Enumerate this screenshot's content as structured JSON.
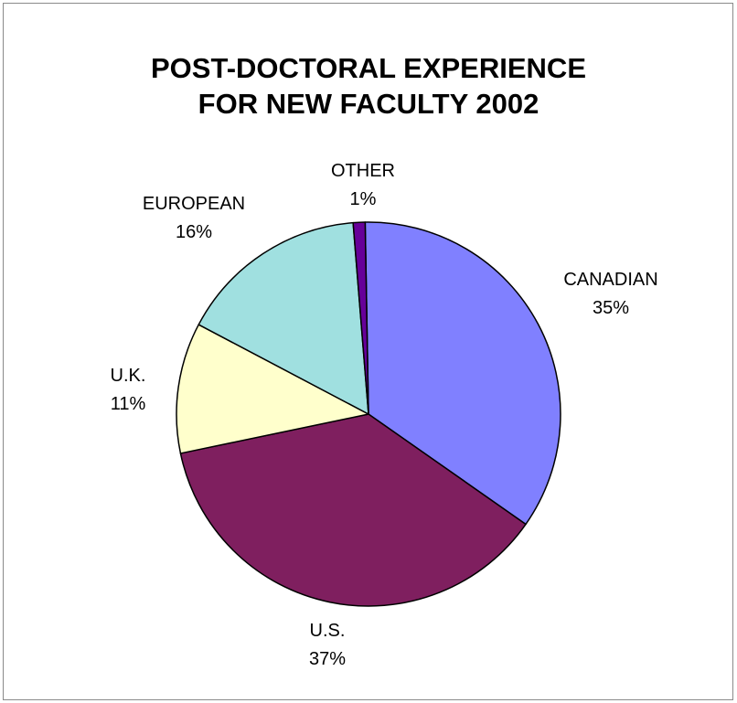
{
  "chart_data": {
    "type": "pie",
    "title_lines": [
      "POST-DOCTORAL EXPERIENCE",
      "FOR NEW FACULTY 2002"
    ],
    "slices": [
      {
        "label": "CANADIAN",
        "value": 35,
        "value_label": "35%",
        "color": "#8080ff"
      },
      {
        "label": "U.S.",
        "value": 37,
        "value_label": "37%",
        "color": "#7f1f5f"
      },
      {
        "label": "U.K.",
        "value": 11,
        "value_label": "11%",
        "color": "#ffffcc"
      },
      {
        "label": "EUROPEAN",
        "value": 16,
        "value_label": "16%",
        "color": "#a0e0e0"
      },
      {
        "label": "OTHER",
        "value": 1,
        "value_label": "1%",
        "color": "#660099"
      }
    ],
    "slice_outline_color": "#000000",
    "legend": "none"
  }
}
